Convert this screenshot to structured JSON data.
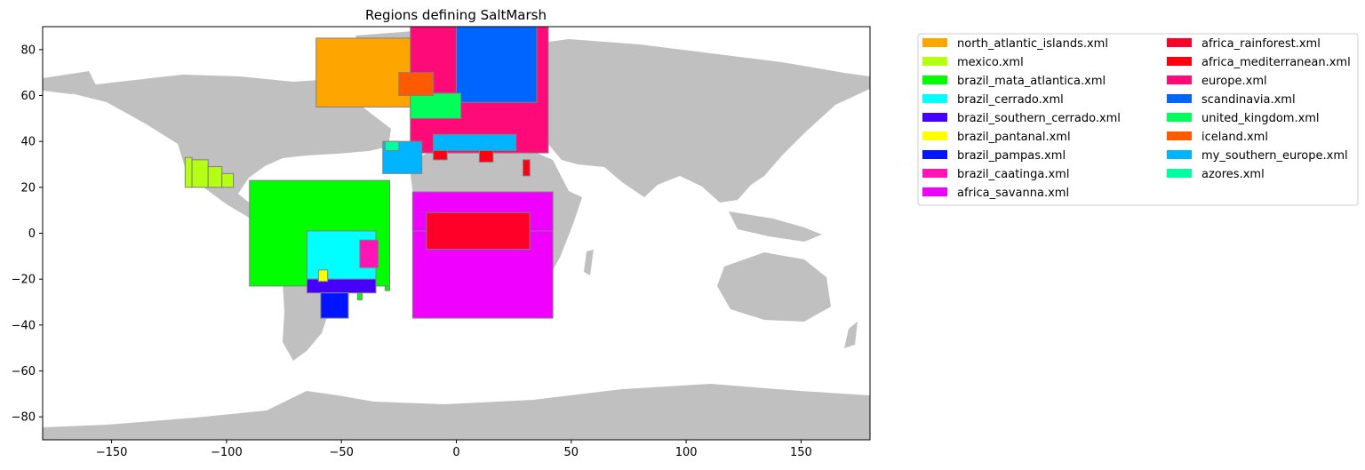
{
  "chart_data": {
    "type": "map",
    "title": "Regions defining SaltMarsh",
    "xlim": [
      -180,
      180
    ],
    "ylim": [
      -90,
      90
    ],
    "xticks": [
      -150,
      -100,
      -50,
      0,
      50,
      100,
      150
    ],
    "yticks": [
      -80,
      -60,
      -40,
      -20,
      0,
      20,
      40,
      60,
      80
    ],
    "basemap_color": "#c0c0c0",
    "coastline_color": "#e6e6e6",
    "region_edge_color": "#808080",
    "legend": {
      "placement": "outside-right",
      "columns": 2,
      "items": [
        {
          "label": "north_atlantic_islands.xml",
          "color": "#ffa500"
        },
        {
          "label": "mexico.xml",
          "color": "#b4ff14"
        },
        {
          "label": "brazil_mata_atlantica.xml",
          "color": "#00ff00"
        },
        {
          "label": "brazil_cerrado.xml",
          "color": "#00ffff"
        },
        {
          "label": "brazil_southern_cerrado.xml",
          "color": "#4600ff"
        },
        {
          "label": "brazil_pantanal.xml",
          "color": "#ffff00"
        },
        {
          "label": "brazil_pampas.xml",
          "color": "#0014ff"
        },
        {
          "label": "brazil_caatinga.xml",
          "color": "#ff14b4"
        },
        {
          "label": "africa_savanna.xml",
          "color": "#f000ff"
        },
        {
          "label": "africa_rainforest.xml",
          "color": "#ff0028"
        },
        {
          "label": "africa_mediterranean.xml",
          "color": "#ff0010"
        },
        {
          "label": "europe.xml",
          "color": "#ff0a78"
        },
        {
          "label": "scandinavia.xml",
          "color": "#0064ff"
        },
        {
          "label": "united_kingdom.xml",
          "color": "#00ff5a"
        },
        {
          "label": "iceland.xml",
          "color": "#ff5a00"
        },
        {
          "label": "my_southern_europe.xml",
          "color": "#00b4ff"
        },
        {
          "label": "azores.xml",
          "color": "#00ffa0"
        }
      ]
    },
    "regions": [
      {
        "name": "africa_savanna.xml",
        "color": "#f000ff",
        "lon": [
          -19,
          42
        ],
        "lat": [
          -37,
          18
        ]
      },
      {
        "name": "africa_savanna.xml",
        "color": "#f000ff",
        "lon": [
          -19,
          42
        ],
        "lat": [
          1,
          18
        ]
      },
      {
        "name": "africa_rainforest.xml",
        "color": "#ff0028",
        "lon": [
          -13,
          32
        ],
        "lat": [
          -7,
          9
        ]
      },
      {
        "name": "brazil_mata_atlantica.xml",
        "color": "#00ff00",
        "lon": [
          -90,
          -29
        ],
        "lat": [
          -23,
          23
        ]
      },
      {
        "name": "brazil_mata_atlantica.xml",
        "color": "#00ff00",
        "lon": [
          -43,
          -41
        ],
        "lat": [
          -29,
          -26
        ]
      },
      {
        "name": "brazil_mata_atlantica.xml",
        "color": "#00ff00",
        "lon": [
          -31,
          -29
        ],
        "lat": [
          -25,
          -23
        ]
      },
      {
        "name": "brazil_cerrado.xml",
        "color": "#00ffff",
        "lon": [
          -65,
          -35
        ],
        "lat": [
          -20,
          1
        ]
      },
      {
        "name": "brazil_caatinga.xml",
        "color": "#ff14b4",
        "lon": [
          -42,
          -34
        ],
        "lat": [
          -15,
          -3
        ]
      },
      {
        "name": "brazil_southern_cerrado.xml",
        "color": "#4600ff",
        "lon": [
          -65,
          -35
        ],
        "lat": [
          -26,
          -20
        ]
      },
      {
        "name": "brazil_pantanal.xml",
        "color": "#ffff00",
        "lon": [
          -60,
          -56
        ],
        "lat": [
          -21,
          -16
        ]
      },
      {
        "name": "brazil_pampas.xml",
        "color": "#0014ff",
        "lon": [
          -59,
          -47
        ],
        "lat": [
          -37,
          -26
        ]
      },
      {
        "name": "mexico.xml",
        "color": "#b4ff14",
        "lon": [
          -118,
          -115
        ],
        "lat": [
          20,
          33
        ]
      },
      {
        "name": "mexico.xml",
        "color": "#b4ff14",
        "lon": [
          -115,
          -108
        ],
        "lat": [
          20,
          32
        ]
      },
      {
        "name": "mexico.xml",
        "color": "#b4ff14",
        "lon": [
          -108,
          -102
        ],
        "lat": [
          20,
          29
        ]
      },
      {
        "name": "mexico.xml",
        "color": "#b4ff14",
        "lon": [
          -102,
          -97
        ],
        "lat": [
          20,
          26
        ]
      },
      {
        "name": "north_atlantic_islands.xml",
        "color": "#ffa500",
        "lon": [
          -61,
          0
        ],
        "lat": [
          55,
          85
        ]
      },
      {
        "name": "europe.xml",
        "color": "#ff0a78",
        "lon": [
          -20,
          40
        ],
        "lat": [
          35,
          90
        ]
      },
      {
        "name": "scandinavia.xml",
        "color": "#0064ff",
        "lon": [
          0,
          35
        ],
        "lat": [
          57,
          90
        ]
      },
      {
        "name": "united_kingdom.xml",
        "color": "#00ff5a",
        "lon": [
          -20,
          2
        ],
        "lat": [
          50,
          61
        ]
      },
      {
        "name": "iceland.xml",
        "color": "#ff5a00",
        "lon": [
          -25,
          -10
        ],
        "lat": [
          60,
          70
        ]
      },
      {
        "name": "my_southern_europe.xml",
        "color": "#00b4ff",
        "lon": [
          -32,
          -15
        ],
        "lat": [
          26,
          40
        ]
      },
      {
        "name": "my_southern_europe.xml",
        "color": "#00b4ff",
        "lon": [
          -10,
          26
        ],
        "lat": [
          36,
          43
        ]
      },
      {
        "name": "africa_mediterranean.xml",
        "color": "#ff0010",
        "lon": [
          -10,
          -4
        ],
        "lat": [
          32,
          36
        ]
      },
      {
        "name": "africa_mediterranean.xml",
        "color": "#ff0010",
        "lon": [
          10,
          16
        ],
        "lat": [
          31,
          36
        ]
      },
      {
        "name": "africa_mediterranean.xml",
        "color": "#ff0010",
        "lon": [
          29,
          32
        ],
        "lat": [
          25,
          32
        ]
      },
      {
        "name": "azores.xml",
        "color": "#00ffa0",
        "lon": [
          -31,
          -25
        ],
        "lat": [
          36,
          40
        ]
      }
    ]
  }
}
